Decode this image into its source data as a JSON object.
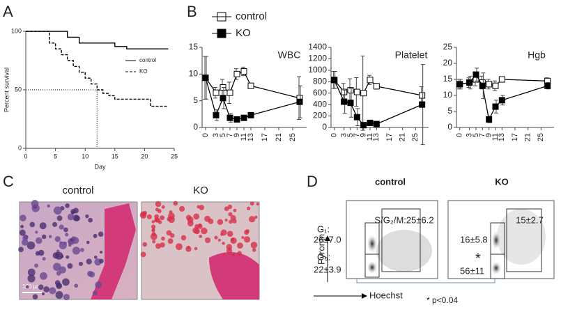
{
  "panels": [
    "A",
    "B",
    "C",
    "D"
  ],
  "chart_data": [
    {
      "type": "step",
      "xlabel": "Day",
      "ylabel": "Percent survival",
      "xlim": [
        0,
        25
      ],
      "xticks": [
        0,
        5,
        10,
        15,
        20,
        25
      ],
      "ylim": [
        0,
        100
      ],
      "yticks": [
        0,
        50,
        100
      ],
      "series": [
        {
          "name": "control",
          "color": "#000",
          "dash": false,
          "x": [
            0,
            7,
            9,
            15,
            17,
            24
          ],
          "values": [
            100,
            95,
            90,
            87,
            85,
            85
          ]
        },
        {
          "name": "KO",
          "color": "#000",
          "dash": true,
          "x": [
            0,
            4,
            5,
            6,
            7,
            8,
            9,
            10,
            11,
            12,
            13,
            14,
            15,
            21,
            24
          ],
          "values": [
            100,
            90,
            85,
            80,
            75,
            70,
            65,
            60,
            55,
            50,
            47,
            45,
            42,
            36,
            36
          ]
        }
      ]
    },
    {
      "type": "line",
      "title": "WBC",
      "legend": true,
      "x": [
        0,
        3,
        5,
        7,
        9,
        11,
        13,
        27
      ],
      "xlim": [
        -1,
        29
      ],
      "xticks": [
        0,
        3,
        5,
        7,
        9,
        11,
        13,
        17,
        21,
        25
      ],
      "ylim": [
        0,
        15
      ],
      "yticks": [
        0,
        5,
        10,
        15
      ],
      "series": [
        {
          "name": "control",
          "color": "#000",
          "marker": "open",
          "values": [
            9.3,
            6.5,
            7.5,
            6.5,
            10,
            10.5,
            7.8,
            5.5
          ],
          "errors": [
            4,
            1,
            1.5,
            2,
            1,
            0.8,
            0.5,
            4
          ]
        },
        {
          "name": "KO",
          "color": "#000",
          "marker": "filled",
          "values": [
            9.3,
            2.3,
            5.5,
            1.8,
            1.5,
            1.8,
            2.3,
            4.8
          ],
          "errors": [
            4,
            1,
            2,
            0.8,
            0.5,
            0.5,
            0.5,
            3
          ]
        }
      ]
    },
    {
      "type": "line",
      "title": "Platelet",
      "legend": false,
      "x": [
        0,
        3,
        5,
        7,
        9,
        11,
        13,
        27
      ],
      "xlim": [
        -1,
        29
      ],
      "xticks": [
        0,
        3,
        5,
        7,
        9,
        11,
        13,
        17,
        21,
        25
      ],
      "ylim": [
        0,
        1400
      ],
      "yticks": [
        0,
        200,
        400,
        600,
        800,
        1000,
        1200,
        1400
      ],
      "series": [
        {
          "name": "control",
          "color": "#000",
          "marker": "open",
          "values": [
            830,
            620,
            650,
            620,
            600,
            830,
            720,
            560
          ],
          "errors": [
            150,
            150,
            200,
            250,
            650,
            80,
            50,
            150
          ]
        },
        {
          "name": "KO",
          "color": "#000",
          "marker": "filled",
          "values": [
            830,
            450,
            430,
            180,
            40,
            80,
            60,
            400
          ],
          "errors": [
            150,
            200,
            250,
            150,
            30,
            30,
            20,
            700
          ]
        }
      ]
    },
    {
      "type": "line",
      "title": "Hgb",
      "legend": false,
      "x": [
        0,
        3,
        5,
        7,
        9,
        11,
        13,
        27
      ],
      "xlim": [
        -1,
        29
      ],
      "xticks": [
        0,
        3,
        5,
        7,
        9,
        11,
        13,
        17,
        21,
        25
      ],
      "ylim": [
        0,
        25
      ],
      "yticks": [
        0,
        5,
        10,
        15,
        20,
        25
      ],
      "series": [
        {
          "name": "control",
          "color": "#000",
          "marker": "open",
          "values": [
            13.5,
            14,
            15,
            14,
            13.5,
            13,
            15,
            14.5
          ],
          "errors": [
            1.5,
            1.5,
            2,
            2,
            1.5,
            1.5,
            0.8,
            1
          ]
        },
        {
          "name": "KO",
          "color": "#000",
          "marker": "filled",
          "values": [
            13.5,
            14,
            16.5,
            13,
            2.5,
            6.5,
            8.5,
            13
          ],
          "errors": [
            1.5,
            2,
            2,
            4,
            1,
            2,
            1.5,
            1
          ]
        }
      ]
    }
  ],
  "micrograph": {
    "labels": [
      "control",
      "KO"
    ],
    "scale_bar": "100 µm"
  },
  "flow": {
    "labels": [
      "control",
      "KO"
    ],
    "y_axis": "Pyronin",
    "x_axis": "Hoechst",
    "control": {
      "sg2m": "S/G₂/M:25±6.2",
      "g1_label": "G₁:",
      "g1": "26±7.0",
      "g0_label": "G₀:",
      "g0": "22±3.9"
    },
    "ko": {
      "sg2m": "15±2.7",
      "g1": "16±5.8",
      "g0": "56±11",
      "star": "*"
    },
    "significance": "* p<0.04"
  }
}
